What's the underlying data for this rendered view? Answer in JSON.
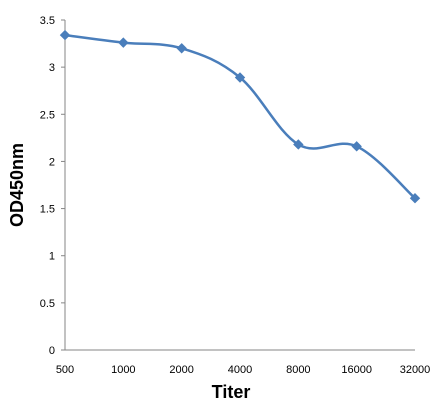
{
  "chart_data": {
    "type": "line",
    "title": "",
    "xlabel": "Titer",
    "ylabel": "OD450nm",
    "categories": [
      "500",
      "1000",
      "2000",
      "4000",
      "8000",
      "16000",
      "32000"
    ],
    "series": [
      {
        "values": [
          3.34,
          3.26,
          3.2,
          2.89,
          2.18,
          2.16,
          1.61
        ]
      }
    ],
    "ylim": [
      0,
      3.5
    ],
    "yticks": [
      "0",
      "0.5",
      "1",
      "1.5",
      "2",
      "2.5",
      "3",
      "3.5"
    ],
    "grid": false,
    "legend": "none",
    "line_color": "#4a7ebb",
    "marker": "diamond"
  }
}
